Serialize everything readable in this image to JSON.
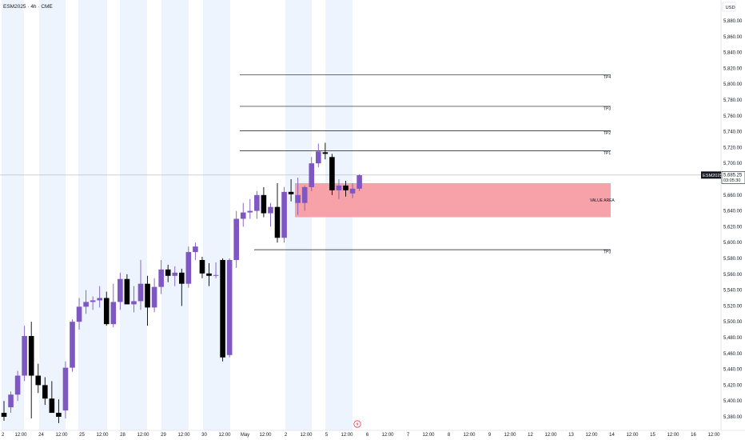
{
  "header": {
    "symbol_label": "ESM2025 · 4h · CME"
  },
  "currency": "USD",
  "price_axis": {
    "ticks": [
      "5,380.00",
      "5,400.00",
      "5,420.00",
      "5,440.00",
      "5,460.00",
      "5,480.00",
      "5,500.00",
      "5,520.00",
      "5,540.00",
      "5,560.00",
      "5,580.00",
      "5,600.00",
      "5,620.00",
      "5,640.00",
      "5,660.00",
      "5,680.00",
      "5,700.00",
      "5,720.00",
      "5,740.00",
      "5,760.00",
      "5,780.00",
      "5,800.00",
      "5,820.00",
      "5,840.00",
      "5,860.00",
      "5,880.00"
    ]
  },
  "current_price": {
    "symbol": "ESM2025",
    "price": "5,685.25",
    "countdown": "03:05:30"
  },
  "time_axis": {
    "labels": [
      "2",
      "12:00",
      "24",
      "12:00",
      "25",
      "12:00",
      "28",
      "12:00",
      "29",
      "12:00",
      "30",
      "12:00",
      "May",
      "12:00",
      "2",
      "12:00",
      "5",
      "12:00",
      "6",
      "12:00",
      "7",
      "12:00",
      "8",
      "12:00",
      "9",
      "12:00",
      "12",
      "12:00",
      "13",
      "12:00",
      "14",
      "12:00",
      "15",
      "12:00",
      "16",
      "12:00"
    ]
  },
  "colors": {
    "bull": "#7e57c2",
    "bear": "#000000",
    "value_area": "#f7a1a9",
    "session_band": "#eef4fd"
  },
  "chart_data": {
    "type": "candlestick",
    "ylim": [
      5368,
      5896
    ],
    "candles": [
      {
        "o": 5385,
        "h": 5400,
        "l": 5375,
        "c": 5380
      },
      {
        "o": 5392,
        "h": 5412,
        "l": 5385,
        "c": 5408
      },
      {
        "o": 5408,
        "h": 5438,
        "l": 5400,
        "c": 5432
      },
      {
        "o": 5432,
        "h": 5495,
        "l": 5425,
        "c": 5482
      },
      {
        "o": 5482,
        "h": 5500,
        "l": 5378,
        "c": 5432
      },
      {
        "o": 5432,
        "h": 5447,
        "l": 5410,
        "c": 5420
      },
      {
        "o": 5420,
        "h": 5430,
        "l": 5395,
        "c": 5403
      },
      {
        "o": 5403,
        "h": 5425,
        "l": 5388,
        "c": 5385
      },
      {
        "o": 5385,
        "h": 5402,
        "l": 5372,
        "c": 5380
      },
      {
        "o": 5388,
        "h": 5450,
        "l": 5378,
        "c": 5442
      },
      {
        "o": 5442,
        "h": 5503,
        "l": 5437,
        "c": 5500
      },
      {
        "o": 5500,
        "h": 5530,
        "l": 5490,
        "c": 5519
      },
      {
        "o": 5519,
        "h": 5540,
        "l": 5510,
        "c": 5525
      },
      {
        "o": 5525,
        "h": 5532,
        "l": 5515,
        "c": 5527
      },
      {
        "o": 5527,
        "h": 5545,
        "l": 5518,
        "c": 5530
      },
      {
        "o": 5530,
        "h": 5538,
        "l": 5495,
        "c": 5497
      },
      {
        "o": 5497,
        "h": 5548,
        "l": 5493,
        "c": 5525
      },
      {
        "o": 5525,
        "h": 5562,
        "l": 5515,
        "c": 5554
      },
      {
        "o": 5554,
        "h": 5560,
        "l": 5525,
        "c": 5522
      },
      {
        "o": 5522,
        "h": 5545,
        "l": 5512,
        "c": 5526
      },
      {
        "o": 5526,
        "h": 5578,
        "l": 5515,
        "c": 5548
      },
      {
        "o": 5548,
        "h": 5558,
        "l": 5495,
        "c": 5518
      },
      {
        "o": 5518,
        "h": 5555,
        "l": 5512,
        "c": 5544
      },
      {
        "o": 5544,
        "h": 5578,
        "l": 5535,
        "c": 5566
      },
      {
        "o": 5566,
        "h": 5572,
        "l": 5550,
        "c": 5558
      },
      {
        "o": 5558,
        "h": 5570,
        "l": 5545,
        "c": 5562
      },
      {
        "o": 5562,
        "h": 5567,
        "l": 5520,
        "c": 5548
      },
      {
        "o": 5548,
        "h": 5595,
        "l": 5543,
        "c": 5588
      },
      {
        "o": 5588,
        "h": 5600,
        "l": 5578,
        "c": 5595
      },
      {
        "o": 5578,
        "h": 5582,
        "l": 5555,
        "c": 5561
      },
      {
        "o": 5561,
        "h": 5574,
        "l": 5545,
        "c": 5558
      },
      {
        "o": 5558,
        "h": 5575,
        "l": 5555,
        "c": 5559
      },
      {
        "o": 5578,
        "h": 5580,
        "l": 5450,
        "c": 5455
      },
      {
        "o": 5458,
        "h": 5580,
        "l": 5455,
        "c": 5578
      },
      {
        "o": 5578,
        "h": 5640,
        "l": 5568,
        "c": 5630
      },
      {
        "o": 5630,
        "h": 5650,
        "l": 5620,
        "c": 5638
      },
      {
        "o": 5638,
        "h": 5655,
        "l": 5630,
        "c": 5640
      },
      {
        "o": 5640,
        "h": 5665,
        "l": 5630,
        "c": 5660
      },
      {
        "o": 5660,
        "h": 5670,
        "l": 5632,
        "c": 5637
      },
      {
        "o": 5637,
        "h": 5650,
        "l": 5620,
        "c": 5645
      },
      {
        "o": 5645,
        "h": 5675,
        "l": 5600,
        "c": 5606
      },
      {
        "o": 5606,
        "h": 5670,
        "l": 5600,
        "c": 5664
      },
      {
        "o": 5664,
        "h": 5680,
        "l": 5652,
        "c": 5661
      },
      {
        "o": 5650,
        "h": 5682,
        "l": 5635,
        "c": 5660
      },
      {
        "o": 5650,
        "h": 5672,
        "l": 5640,
        "c": 5670
      },
      {
        "o": 5670,
        "h": 5708,
        "l": 5665,
        "c": 5700
      },
      {
        "o": 5700,
        "h": 5725,
        "l": 5695,
        "c": 5715
      },
      {
        "o": 5714,
        "h": 5726,
        "l": 5705,
        "c": 5712
      },
      {
        "o": 5708,
        "h": 5712,
        "l": 5660,
        "c": 5666
      },
      {
        "o": 5666,
        "h": 5680,
        "l": 5655,
        "c": 5672
      },
      {
        "o": 5672,
        "h": 5678,
        "l": 5658,
        "c": 5666
      },
      {
        "o": 5662,
        "h": 5675,
        "l": 5656,
        "c": 5668
      },
      {
        "o": 5668,
        "h": 5686,
        "l": 5665,
        "c": 5685
      }
    ],
    "levels": [
      {
        "label": "TP4",
        "value": 5812
      },
      {
        "label": "TP3",
        "value": 5772
      },
      {
        "label": "TP2",
        "value": 5741
      },
      {
        "label": "TP1",
        "value": 5716
      },
      {
        "label": "TP3",
        "value": 5591
      }
    ],
    "value_area": {
      "label": "VALUE AREA",
      "low": 5632,
      "high": 5675
    }
  }
}
